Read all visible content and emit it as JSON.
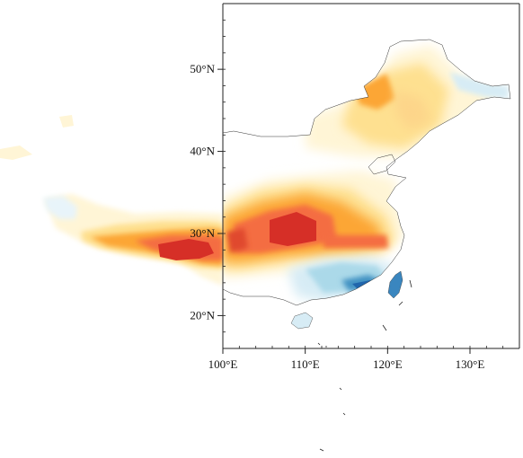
{
  "map": {
    "lon_range": [
      100,
      136
    ],
    "lat_range": [
      16,
      58
    ],
    "colors": {
      "deep_red": "#d62f27",
      "orange": "#f46d43",
      "amber": "#fca636",
      "light_yellow": "#fee090",
      "pale_yellow": "#fff5d6",
      "light_blue": "#abd9e9",
      "mid_blue": "#4393c3",
      "deep_blue": "#2166ac",
      "coast": "#333333",
      "frame": "#222222"
    },
    "x_ticks": [
      {
        "value": 100,
        "label": "100°E"
      },
      {
        "value": 110,
        "label": "110°E"
      },
      {
        "value": 120,
        "label": "120°E"
      },
      {
        "value": 130,
        "label": "130°E"
      }
    ],
    "y_ticks": [
      {
        "value": 20,
        "label": "20°N"
      },
      {
        "value": 30,
        "label": "30°N"
      },
      {
        "value": 40,
        "label": "40°N"
      },
      {
        "value": 50,
        "label": "50°N"
      }
    ]
  }
}
